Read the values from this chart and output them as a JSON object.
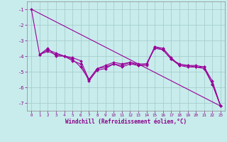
{
  "xlabel": "Windchill (Refroidissement éolien,°C)",
  "ylabel": "",
  "xlim": [
    -0.5,
    23.5
  ],
  "ylim": [
    -7.5,
    -0.5
  ],
  "yticks": [
    -7,
    -6,
    -5,
    -4,
    -3,
    -2,
    -1
  ],
  "xtick_labels": [
    "0",
    "1",
    "2",
    "3",
    "4",
    "5",
    "6",
    "7",
    "8",
    "9",
    "10",
    "11",
    "12",
    "13",
    "14",
    "15",
    "16",
    "17",
    "18",
    "19",
    "20",
    "21",
    "22",
    "23"
  ],
  "background_color": "#c8ecec",
  "line_color": "#990099",
  "grid_color": "#a0c8c8",
  "series": [
    {
      "x": [
        0,
        1,
        2,
        3,
        4,
        5,
        6,
        7,
        8,
        9,
        10,
        11,
        12,
        13,
        14,
        15,
        16,
        17,
        18,
        19,
        20,
        21,
        22,
        23
      ],
      "y": [
        -1.0,
        -3.9,
        -3.6,
        -3.8,
        -4.0,
        -4.2,
        -4.7,
        -5.5,
        -4.8,
        -4.6,
        -4.4,
        -4.5,
        -4.4,
        -4.6,
        -4.6,
        -3.4,
        -3.6,
        -4.2,
        -4.5,
        -4.6,
        -4.6,
        -4.7,
        -5.6,
        -7.2
      ]
    },
    {
      "x": [
        1,
        2,
        3,
        4,
        5,
        6,
        7,
        8,
        9,
        10,
        11,
        12,
        13,
        14,
        15,
        16,
        17,
        18,
        19,
        20,
        21,
        22,
        23
      ],
      "y": [
        -3.9,
        -3.5,
        -4.0,
        -4.0,
        -4.3,
        -4.5,
        -5.6,
        -4.9,
        -4.8,
        -4.5,
        -4.7,
        -4.5,
        -4.6,
        -4.5,
        -3.4,
        -3.5,
        -4.1,
        -4.6,
        -4.6,
        -4.7,
        -4.7,
        -5.8,
        -7.2
      ]
    },
    {
      "x": [
        1,
        2,
        3,
        4,
        5,
        6,
        7,
        8,
        9,
        10,
        11,
        12,
        13,
        14,
        15,
        16,
        17,
        18,
        19,
        20,
        21,
        22,
        23
      ],
      "y": [
        -3.9,
        -3.7,
        -3.9,
        -4.0,
        -4.1,
        -4.3,
        -5.5,
        -4.8,
        -4.7,
        -4.5,
        -4.6,
        -4.4,
        -4.5,
        -4.5,
        -3.5,
        -3.6,
        -4.2,
        -4.6,
        -4.7,
        -4.7,
        -4.8,
        -5.8,
        -7.2
      ]
    },
    {
      "x": [
        0,
        23
      ],
      "y": [
        -1.0,
        -7.2
      ]
    }
  ]
}
